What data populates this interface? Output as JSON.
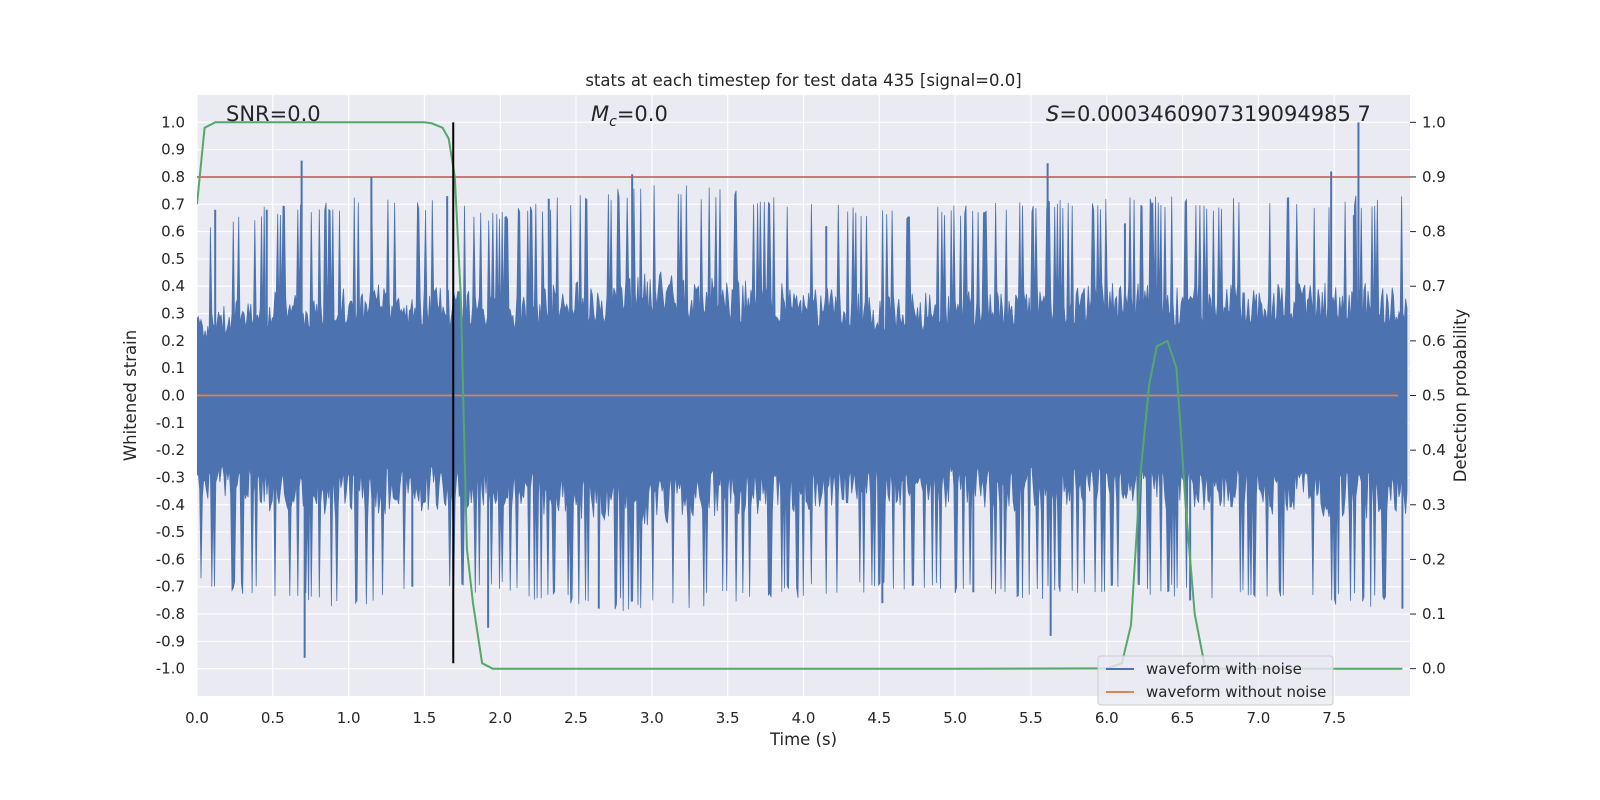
{
  "colors": {
    "background": "#eaeaf2",
    "grid": "#ffffff",
    "waveform_noise": "#4c72b0",
    "waveform_clean": "#dd8452",
    "probability": "#55a868",
    "threshold": "#c44e52",
    "marker": "#000000"
  },
  "chart_data": {
    "type": "line",
    "title": "stats at each timestep for test data 435 [signal=0.0]",
    "xlabel": "Time (s)",
    "ylabel": "Whitened strain",
    "y2label": "Detection probability",
    "xlim": [
      0.0,
      8.0
    ],
    "ylim": [
      -1.1,
      1.1
    ],
    "y2lim": [
      -0.05,
      1.05
    ],
    "x_ticks": [
      "0.0",
      "0.5",
      "1.0",
      "1.5",
      "2.0",
      "2.5",
      "3.0",
      "3.5",
      "4.0",
      "4.5",
      "5.0",
      "5.5",
      "6.0",
      "6.5",
      "7.0",
      "7.5"
    ],
    "y_ticks": [
      "1.0",
      "0.9",
      "0.8",
      "0.7",
      "0.6",
      "0.5",
      "0.4",
      "0.3",
      "0.2",
      "0.1",
      "0.0",
      "-0.1",
      "-0.2",
      "-0.3",
      "-0.4",
      "-0.5",
      "-0.6",
      "-0.7",
      "-0.8",
      "-0.9",
      "-1.0"
    ],
    "y2_ticks": [
      "1.0",
      "0.9",
      "0.8",
      "0.7",
      "0.6",
      "0.5",
      "0.4",
      "0.3",
      "0.2",
      "0.1",
      "0.0"
    ],
    "annotations": {
      "snr": "SNR=0.0",
      "mc_symbol": "M",
      "mc_sub": "c",
      "mc_value": "=0.0",
      "s_symbol": "S",
      "s_value": "=0.0003460907319094985 7"
    },
    "threshold_y2": 0.9,
    "vertical_marker_x": 1.69,
    "series": [
      {
        "name": "waveform with noise",
        "axis": "left",
        "envelope_x": [
          0.0,
          0.5,
          1.0,
          1.5,
          2.0,
          2.5,
          3.0,
          3.5,
          4.0,
          4.5,
          5.0,
          5.5,
          6.0,
          6.5,
          7.0,
          7.5,
          8.0
        ],
        "envelope_upper": [
          0.35,
          0.42,
          0.45,
          0.44,
          0.4,
          0.46,
          0.5,
          0.48,
          0.45,
          0.4,
          0.42,
          0.44,
          0.45,
          0.45,
          0.44,
          0.46,
          0.45
        ],
        "envelope_lower": [
          -0.42,
          -0.48,
          -0.5,
          -0.46,
          -0.44,
          -0.5,
          -0.52,
          -0.48,
          -0.46,
          -0.44,
          -0.45,
          -0.47,
          -0.45,
          -0.46,
          -0.47,
          -0.49,
          -0.5
        ],
        "spike_x": [
          0.12,
          0.46,
          0.69,
          0.71,
          1.15,
          1.42,
          1.65,
          1.92,
          2.32,
          2.65,
          2.87,
          3.55,
          4.15,
          4.52,
          5.12,
          5.61,
          5.63,
          6.12,
          6.55,
          7.48,
          7.63,
          7.66,
          7.95
        ],
        "spike_y": [
          0.68,
          0.68,
          0.86,
          -0.96,
          0.8,
          -0.7,
          0.73,
          -0.85,
          0.72,
          -0.78,
          0.81,
          0.72,
          0.62,
          -0.76,
          -0.72,
          0.85,
          -0.88,
          0.63,
          -0.75,
          0.82,
          0.66,
          1.0,
          -0.78
        ]
      },
      {
        "name": "waveform without noise",
        "axis": "left",
        "x": [
          0.0,
          8.0
        ],
        "y": [
          0.0,
          0.0
        ]
      },
      {
        "name": "detection probability",
        "axis": "right",
        "x": [
          0.0,
          0.05,
          0.12,
          0.2,
          0.4,
          0.8,
          1.2,
          1.4,
          1.5,
          1.55,
          1.62,
          1.66,
          1.7,
          1.74,
          1.78,
          1.82,
          1.88,
          1.95,
          2.0,
          3.0,
          4.0,
          5.0,
          6.0,
          6.1,
          6.16,
          6.22,
          6.28,
          6.33,
          6.4,
          6.46,
          6.52,
          6.58,
          6.65,
          7.0,
          7.5,
          7.95
        ],
        "y": [
          0.85,
          0.99,
          1.0,
          1.0,
          1.0,
          1.0,
          1.0,
          1.0,
          1.0,
          0.998,
          0.99,
          0.97,
          0.9,
          0.68,
          0.22,
          0.12,
          0.01,
          0.0,
          0.0,
          0.0,
          0.0,
          0.0,
          0.0005,
          0.01,
          0.08,
          0.35,
          0.52,
          0.59,
          0.6,
          0.55,
          0.3,
          0.1,
          0.0,
          0.0,
          0.0,
          0.0
        ]
      }
    ],
    "legend": {
      "location": "bottom-right",
      "entries": [
        "waveform with noise",
        "waveform without noise"
      ]
    }
  }
}
